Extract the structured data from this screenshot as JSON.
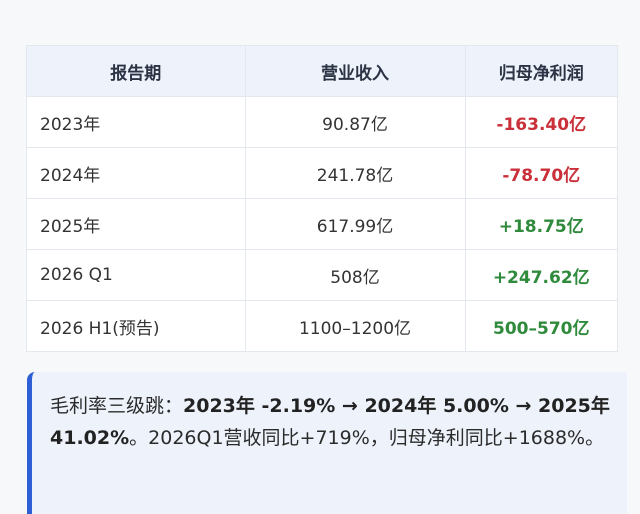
{
  "table": {
    "headers": [
      "报告期",
      "营业收入",
      "归母净利润"
    ],
    "rows": [
      {
        "period": "2023年",
        "revenue": "90.87亿",
        "net_profit": "-163.40亿",
        "sign": "negative"
      },
      {
        "period": "2024年",
        "revenue": "241.78亿",
        "net_profit": "-78.70亿",
        "sign": "negative"
      },
      {
        "period": "2025年",
        "revenue": "617.99亿",
        "net_profit": "+18.75亿",
        "sign": "positive"
      },
      {
        "period": "2026 Q1",
        "revenue": "508亿",
        "net_profit": "+247.62亿",
        "sign": "positive"
      },
      {
        "period": "2026 H1(预告)",
        "revenue": "1100–1200亿",
        "net_profit": "500–570亿",
        "sign": "positive"
      }
    ]
  },
  "callout": {
    "prefix": "毛利率三级跳：",
    "highlight": "2023年 -2.19% → 2024年 5.00% → 2025年 41.02%",
    "suffix": "。2026Q1营收同比+719%，归母净利同比+1688%。"
  },
  "colors": {
    "negative": "#c9303a",
    "positive": "#2f8a3c",
    "accent_bar": "#2f5fd6",
    "header_bg": "#eef3fb"
  }
}
